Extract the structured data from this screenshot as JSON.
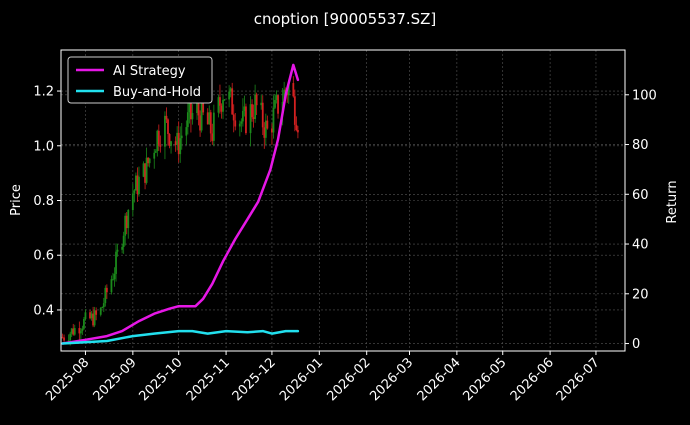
{
  "chart_data": {
    "type": "line",
    "title": "cnoption [90005537.SZ]",
    "xlabel": "",
    "ylabel_left": "Price",
    "ylabel_right": "Return",
    "x_ticks": [
      "2025-08",
      "2025-09",
      "2025-10",
      "2025-11",
      "2025-12",
      "2026-01",
      "2026-02",
      "2026-03",
      "2026-04",
      "2026-05",
      "2026-06",
      "2026-07"
    ],
    "x_range": [
      "2025-07-16",
      "2026-07-20"
    ],
    "ylim_left": [
      0.25,
      1.35
    ],
    "yticks_left": [
      "0.4",
      "0.6",
      "0.8",
      "1.0",
      "1.2"
    ],
    "ylim_right": [
      -3,
      118
    ],
    "yticks_right": [
      "0",
      "20",
      "40",
      "60",
      "80",
      "100"
    ],
    "grid": true,
    "legend_position": "top-left",
    "colors": {
      "background": "#000000",
      "ai_strategy": "#e617e6",
      "buy_and_hold": "#22e0ee",
      "candle_up": "#1b8a1b",
      "candle_down": "#d42020",
      "grid": "#555555"
    },
    "candles": {
      "start_date": "2025-07-17",
      "end_date": "2025-12-18",
      "close_path": [
        [
          "2025-07-17",
          0.3
        ],
        [
          "2025-07-25",
          0.33
        ],
        [
          "2025-08-01",
          0.36
        ],
        [
          "2025-08-10",
          0.38
        ],
        [
          "2025-08-20",
          0.55
        ],
        [
          "2025-08-31",
          0.82
        ],
        [
          "2025-09-10",
          0.92
        ],
        [
          "2025-09-17",
          1.04
        ],
        [
          "2025-09-22",
          1.08
        ],
        [
          "2025-09-30",
          1.0
        ],
        [
          "2025-10-05",
          1.07
        ],
        [
          "2025-10-12",
          1.13
        ],
        [
          "2025-10-17",
          1.1
        ],
        [
          "2025-10-23",
          1.05
        ],
        [
          "2025-10-30",
          1.2
        ],
        [
          "2025-11-05",
          1.15
        ],
        [
          "2025-11-12",
          1.08
        ],
        [
          "2025-11-20",
          1.15
        ],
        [
          "2025-11-28",
          1.05
        ],
        [
          "2025-12-05",
          1.15
        ],
        [
          "2025-12-12",
          1.22
        ],
        [
          "2025-12-18",
          1.1
        ]
      ]
    },
    "series": [
      {
        "name": "AI Strategy",
        "points": [
          [
            "2025-07-17",
            0
          ],
          [
            "2025-08-01",
            1.5
          ],
          [
            "2025-08-15",
            3
          ],
          [
            "2025-08-25",
            5
          ],
          [
            "2025-09-05",
            9
          ],
          [
            "2025-09-15",
            12
          ],
          [
            "2025-09-25",
            14
          ],
          [
            "2025-10-01",
            15
          ],
          [
            "2025-10-12",
            15
          ],
          [
            "2025-10-17",
            18
          ],
          [
            "2025-10-23",
            24
          ],
          [
            "2025-10-30",
            33
          ],
          [
            "2025-11-07",
            42
          ],
          [
            "2025-11-15",
            50
          ],
          [
            "2025-11-22",
            57
          ],
          [
            "2025-11-30",
            70
          ],
          [
            "2025-12-05",
            82
          ],
          [
            "2025-12-10",
            100
          ],
          [
            "2025-12-15",
            112
          ],
          [
            "2025-12-18",
            106
          ]
        ]
      },
      {
        "name": "Buy-and-Hold",
        "points": [
          [
            "2025-07-17",
            0
          ],
          [
            "2025-08-15",
            1
          ],
          [
            "2025-09-01",
            3
          ],
          [
            "2025-09-15",
            4
          ],
          [
            "2025-10-01",
            5
          ],
          [
            "2025-10-10",
            5
          ],
          [
            "2025-10-20",
            4
          ],
          [
            "2025-11-01",
            5
          ],
          [
            "2025-11-15",
            4.5
          ],
          [
            "2025-11-25",
            5
          ],
          [
            "2025-12-01",
            4
          ],
          [
            "2025-12-10",
            5
          ],
          [
            "2025-12-18",
            5
          ]
        ]
      }
    ]
  }
}
